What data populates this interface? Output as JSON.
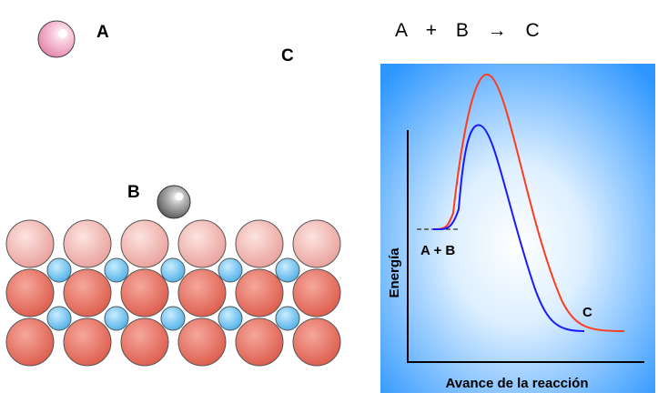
{
  "labels": {
    "molecule_a": "A",
    "molecule_b": "B",
    "product_c": "C"
  },
  "equation": {
    "reactant_a": "A",
    "plus": "+",
    "reactant_b": "B",
    "arrow": "→",
    "product": "C"
  },
  "energy_plot": {
    "y_axis_label": "Energía",
    "x_axis_label": "Avance de la reacción",
    "reactants_label": "A + B",
    "product_label": "C"
  },
  "colors": {
    "molecule_a": "#f4a7c4",
    "molecule_b": "#8c8c8c",
    "surface_large_top": "#f2a9a5",
    "surface_large": "#e4675a",
    "surface_small": "#56b9ec",
    "uncatalyzed_curve": "#ff3b1f",
    "catalyzed_curve": "#1a1aff",
    "plot_background": "#3aa0ff"
  }
}
